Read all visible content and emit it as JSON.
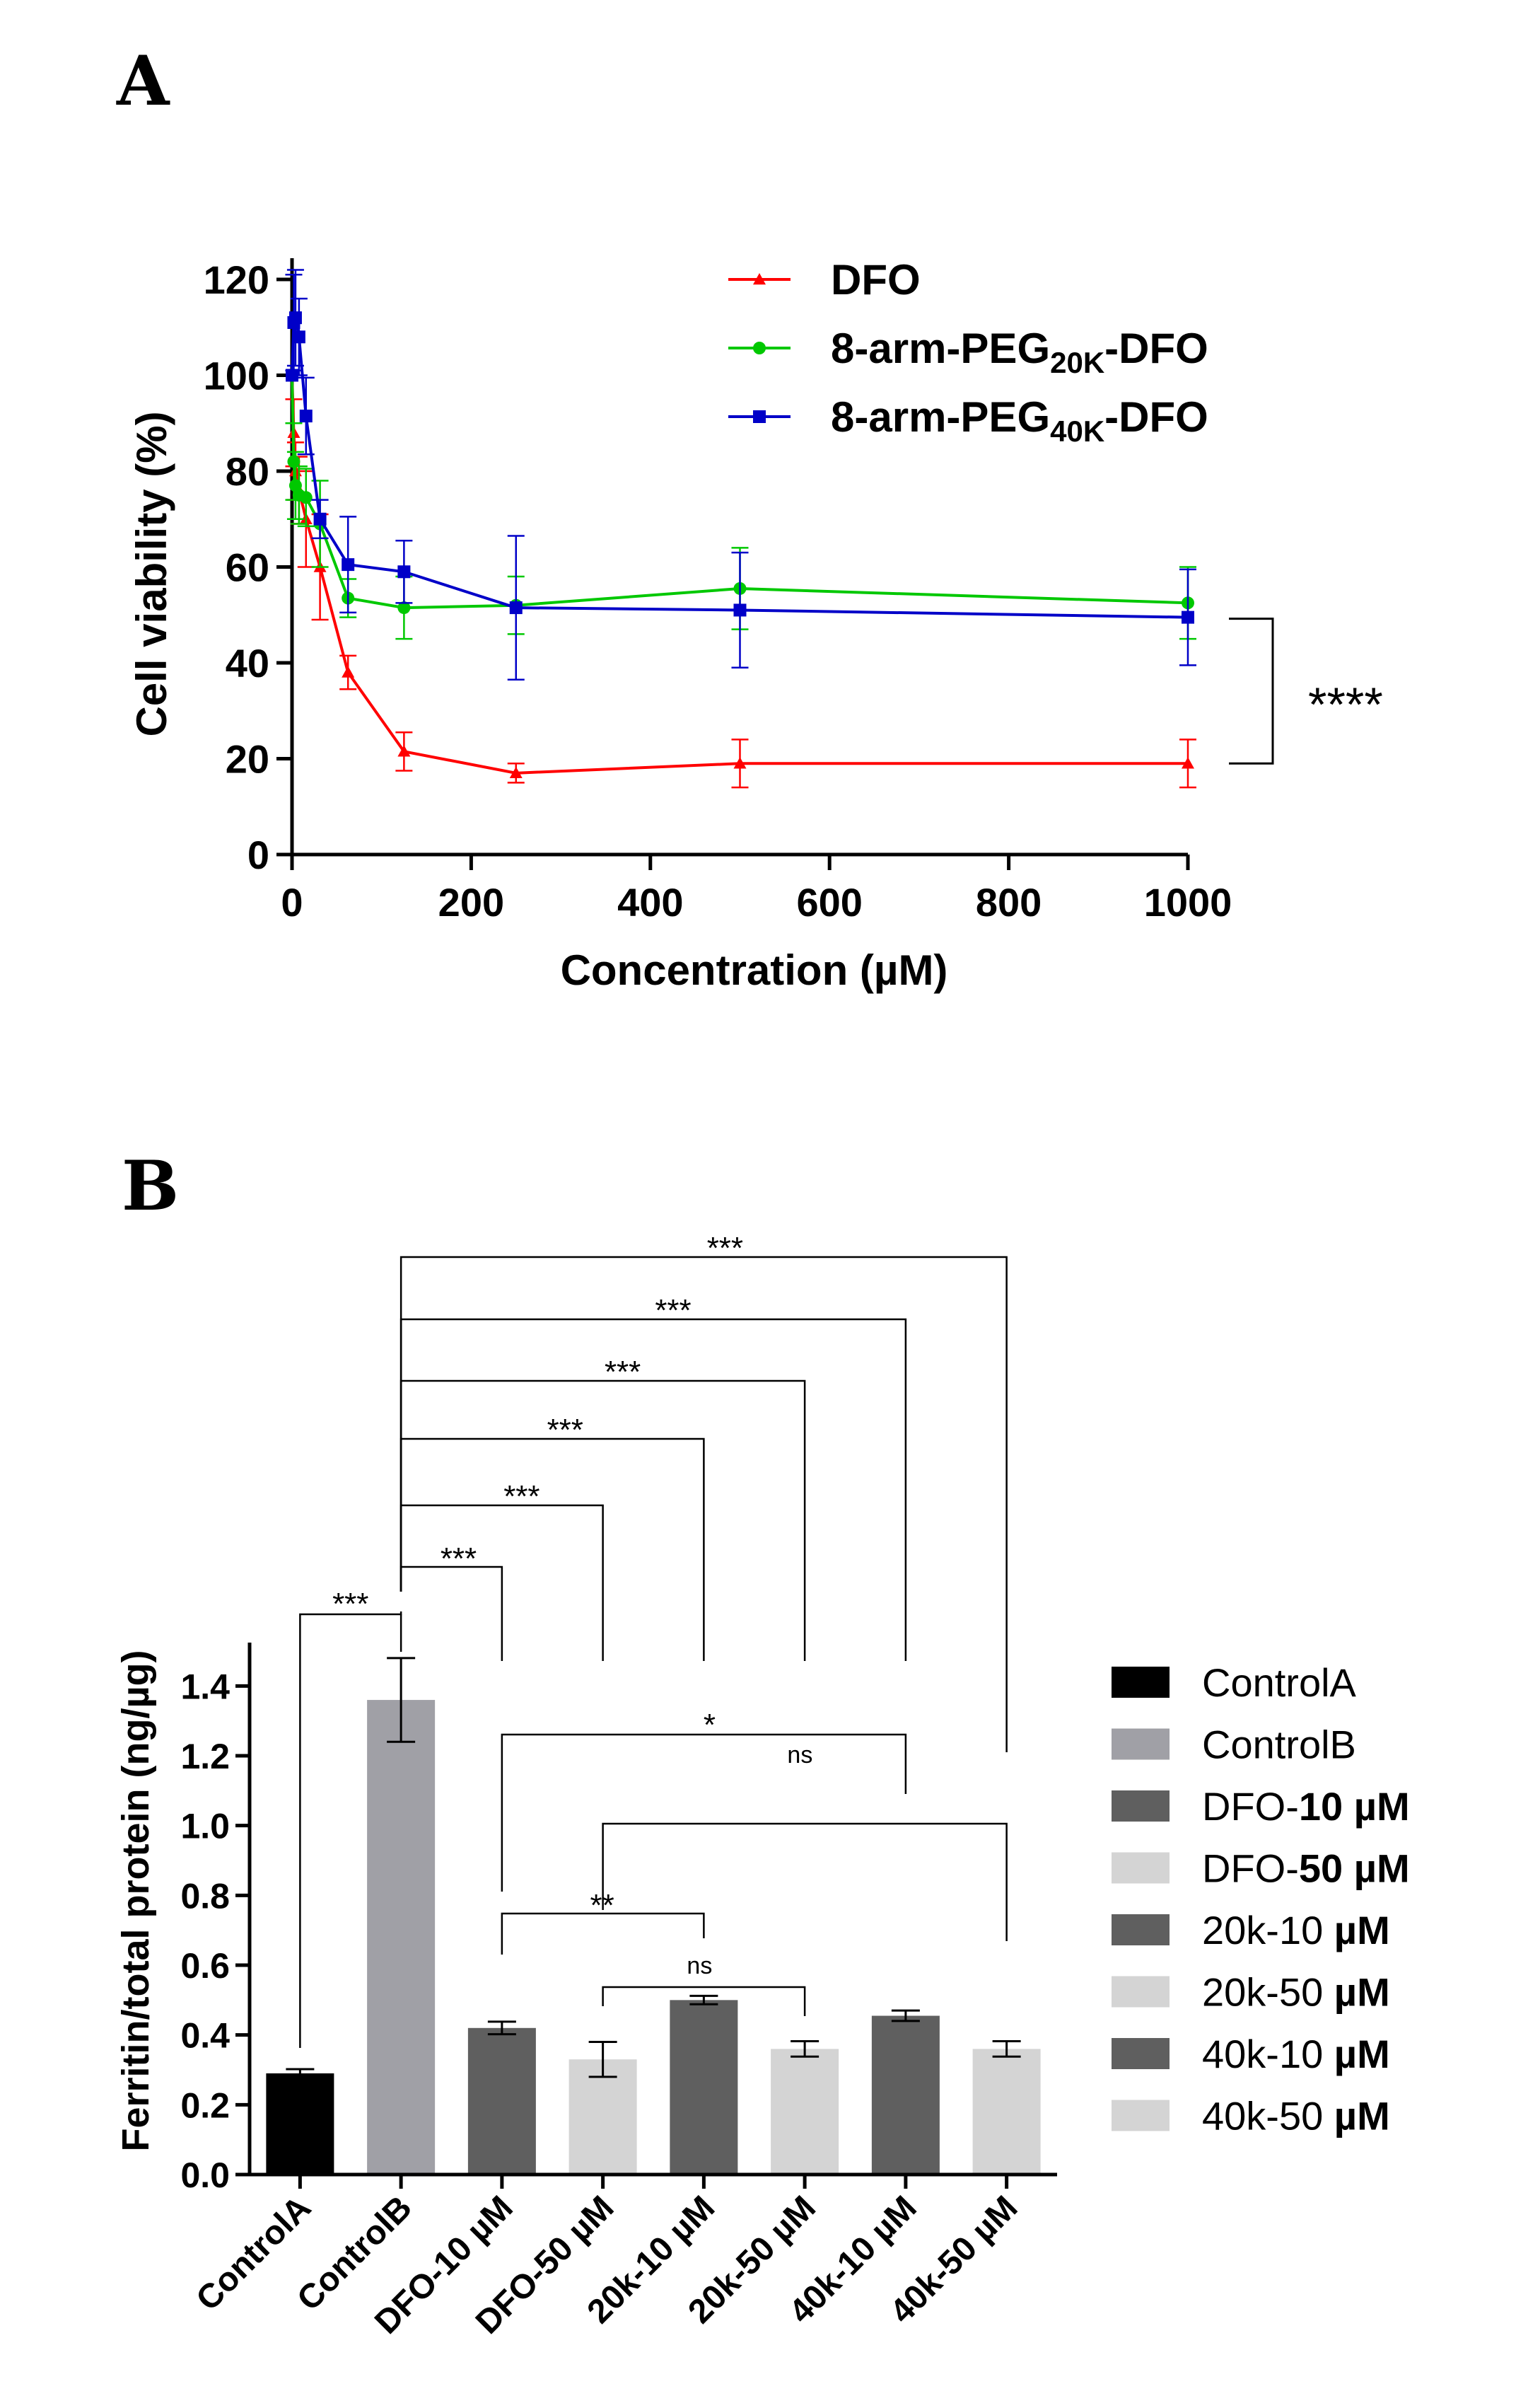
{
  "colors": {
    "dfo": "#ff0000",
    "peg20k": "#00c800",
    "peg40k": "#0000c8",
    "controlA": "#000000",
    "controlB": "#a0a0a6",
    "dark": "#5f5f5f",
    "light": "#d4d4d4"
  },
  "chart_data": [
    {
      "panel_label": "A",
      "type": "line",
      "xlabel": "Concentration (µM)",
      "ylabel": "Cell viability (%)",
      "xlim": [
        0,
        1000
      ],
      "ylim": [
        0,
        120
      ],
      "xticks": [
        "0",
        "200",
        "400",
        "600",
        "800",
        "1000"
      ],
      "yticks": [
        "0",
        "20",
        "40",
        "60",
        "80",
        "100",
        "120"
      ],
      "x": [
        0,
        1.95,
        3.9,
        7.8,
        15.6,
        31.25,
        62.5,
        125,
        250,
        500,
        1000
      ],
      "series": [
        {
          "name": "DFO",
          "name_main": "DFO",
          "name_sub": "",
          "name_tail": "",
          "marker": "triangle",
          "color": "#ff0000",
          "values": [
            100,
            88,
            80,
            76,
            70,
            60,
            38,
            21.5,
            17,
            19,
            19
          ],
          "errors": [
            0,
            7,
            6,
            7,
            10,
            11,
            3.5,
            4,
            2,
            5,
            5
          ]
        },
        {
          "name": "8-arm-PEG20K-DFO",
          "name_main": "8-arm-PEG",
          "name_sub": "20K",
          "name_tail": "-DFO",
          "marker": "circle",
          "color": "#00c800",
          "values": [
            100,
            82,
            77,
            75,
            74.5,
            69,
            53.5,
            51.5,
            52,
            55.5,
            52.5
          ],
          "errors": [
            0,
            8,
            7,
            6,
            6,
            9,
            4,
            6.5,
            6,
            8.5,
            7.5
          ]
        },
        {
          "name": "8-arm-PEG40K-DFO",
          "name_main": "8-arm-PEG",
          "name_sub": "40K",
          "name_tail": "-DFO",
          "marker": "square",
          "color": "#0000c8",
          "values": [
            100,
            111,
            112,
            108,
            91.5,
            70,
            60.5,
            59,
            51.5,
            51,
            49.5
          ],
          "errors": [
            0,
            10,
            10,
            8,
            8,
            4,
            10,
            6.5,
            15,
            12,
            10
          ]
        }
      ],
      "significance": {
        "label": "****",
        "between": [
          "8-arm-PEG20K-DFO / 8-arm-PEG40K-DFO",
          "DFO"
        ]
      }
    },
    {
      "panel_label": "B",
      "type": "bar",
      "ylabel": "Ferritin/total protein (ng/µg)",
      "ylim": [
        0,
        1.5
      ],
      "yticks": [
        "0.0",
        "0.2",
        "0.4",
        "0.6",
        "0.8",
        "1.0",
        "1.2",
        "1.4"
      ],
      "categories": [
        "ControlA",
        "ControlB",
        "DFO-10 µM",
        "DFO-50 µM",
        "20k-10 µM",
        "20k-50 µM",
        "40k-10 µM",
        "40k-50 µM"
      ],
      "values": [
        0.29,
        1.36,
        0.42,
        0.33,
        0.5,
        0.36,
        0.455,
        0.36
      ],
      "errors": [
        0.012,
        0.12,
        0.018,
        0.05,
        0.012,
        0.022,
        0.015,
        0.022
      ],
      "bar_color_keys": [
        "controlA",
        "controlB",
        "dark",
        "light",
        "dark",
        "light",
        "dark",
        "light"
      ],
      "legend": [
        {
          "plain": "ControlA",
          "bold": "",
          "color_key": "controlA"
        },
        {
          "plain": "ControlB",
          "bold": "",
          "color_key": "controlB"
        },
        {
          "plain": "DFO-",
          "bold": "10 µM",
          "color_key": "dark"
        },
        {
          "plain": "DFO-",
          "bold": "50 µM",
          "color_key": "light"
        },
        {
          "plain": "20k-10 ",
          "bold": "µM",
          "color_key": "dark"
        },
        {
          "plain": "20k-50 ",
          "bold": "µM",
          "color_key": "light"
        },
        {
          "plain": "40k-10 ",
          "bold": "µM",
          "color_key": "dark"
        },
        {
          "plain": "40k-50 ",
          "bold": "µM",
          "color_key": "light"
        }
      ],
      "comparisons": [
        {
          "from": 1,
          "to": 0,
          "label": "***"
        },
        {
          "from": 1,
          "to": 2,
          "label": "***"
        },
        {
          "from": 1,
          "to": 3,
          "label": "***"
        },
        {
          "from": 1,
          "to": 4,
          "label": "***"
        },
        {
          "from": 1,
          "to": 5,
          "label": "***"
        },
        {
          "from": 1,
          "to": 6,
          "label": "***"
        },
        {
          "from": 1,
          "to": 7,
          "label": "***"
        },
        {
          "from": 2,
          "to": 6,
          "label": "*"
        },
        {
          "from": 2,
          "to": 6,
          "label": "ns"
        },
        {
          "from": 3,
          "to": 7,
          "label": ""
        },
        {
          "from": 2,
          "to": 4,
          "label": "**"
        },
        {
          "from": 3,
          "to": 5,
          "label": "ns"
        }
      ]
    }
  ]
}
